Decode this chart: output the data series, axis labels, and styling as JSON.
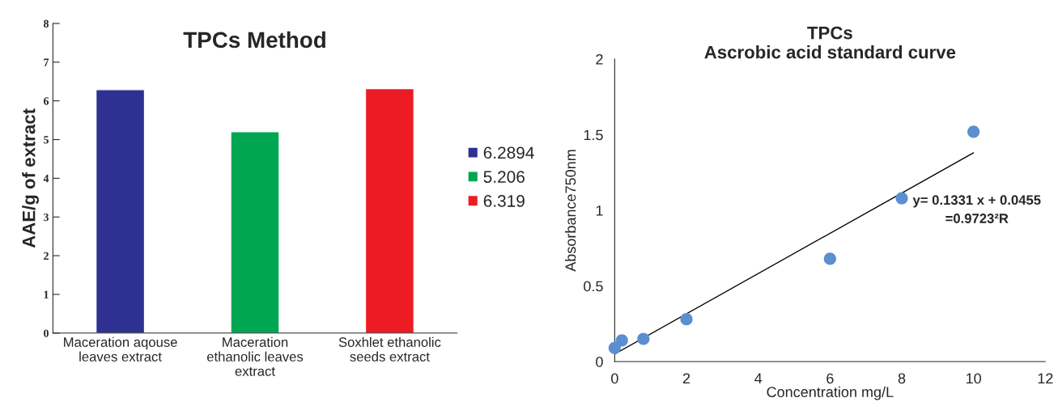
{
  "chart_data": [
    {
      "type": "bar",
      "title": "TPCs Method",
      "ylabel": "AAE/g of extract",
      "categories": [
        "Maceration aqouse\nleaves extract",
        "Maceration\nethanolic leaves\nextract",
        "Soxhlet ethanolic\nseeds extract"
      ],
      "series": [
        {
          "name": "6.2894",
          "color": "#2e3192",
          "values": [
            6.2894,
            null,
            null
          ]
        },
        {
          "name": "5.206",
          "color": "#00a651",
          "values": [
            null,
            5.206,
            null
          ]
        },
        {
          "name": "6.319",
          "color": "#ed1c24",
          "values": [
            null,
            null,
            6.319
          ]
        }
      ],
      "ylim": [
        0,
        8
      ],
      "yticks": [
        0,
        1,
        2,
        3,
        4,
        5,
        6,
        7,
        8
      ],
      "legend": "right",
      "grid": false
    },
    {
      "type": "scatter",
      "title": "TPCs\nAscrobic acid standard curve",
      "xlabel": "Concentration mg/L",
      "ylabel": "Absorbance750nm",
      "series": [
        {
          "type": "scatter",
          "marker": "circle",
          "color": "#5b8fd0",
          "x": [
            0,
            0.2,
            0.8,
            2,
            6,
            8,
            10
          ],
          "values": [
            0.09,
            0.14,
            0.15,
            0.28,
            0.68,
            1.08,
            1.52
          ]
        },
        {
          "type": "line",
          "color": "#000000",
          "x": [
            0,
            10
          ],
          "values": [
            0.05,
            1.38
          ]
        }
      ],
      "xlim": [
        0,
        12
      ],
      "xticks": [
        0,
        2,
        4,
        6,
        8,
        10,
        12
      ],
      "ylim": [
        0,
        2
      ],
      "yticks": [
        0,
        0.5,
        1,
        1.5,
        2
      ],
      "annotations": [
        "y= 0.1331 x + 0.0455\n=0.9723²R"
      ],
      "grid": false,
      "legend": false
    }
  ]
}
